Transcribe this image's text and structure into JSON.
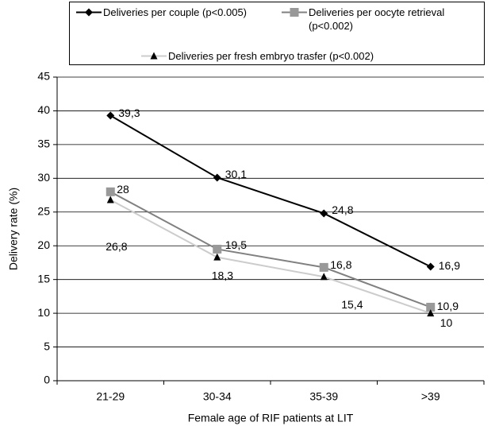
{
  "chart_data": {
    "type": "line",
    "x_label": "Female age of RIF patients at LIT",
    "y_label": "Delivery rate (%)",
    "categories": [
      "21-29",
      "30-34",
      "35-39",
      ">39"
    ],
    "series": [
      {
        "name": "Deliveries per couple (p<0.005)",
        "color": "#000000",
        "marker_color": "#000000",
        "marker": "diamond",
        "values": [
          39.3,
          30.1,
          24.8,
          16.9
        ],
        "value_labels": [
          "39,3",
          "30,1",
          "24,8",
          "16,9"
        ]
      },
      {
        "name": "Deliveries per oocyte retrieval (p<0.002)",
        "color": "#808080",
        "marker_color": "#999999",
        "marker": "square",
        "values": [
          28,
          19.5,
          16.8,
          10.9
        ],
        "value_labels": [
          "28",
          "19,5",
          "16,8",
          "10,9"
        ]
      },
      {
        "name": "Deliveries per fresh embryo trasfer (p<0.002)",
        "color": "#cccccc",
        "marker_color": "#000000",
        "marker": "triangle",
        "values": [
          26.8,
          18.3,
          15.4,
          10
        ],
        "value_labels": [
          "26,8",
          "18,3",
          "15,4",
          "10"
        ]
      }
    ],
    "ylim": [
      0,
      45
    ],
    "yticks": [
      0,
      5,
      10,
      15,
      20,
      25,
      30,
      35,
      40,
      45
    ],
    "grid": true
  }
}
